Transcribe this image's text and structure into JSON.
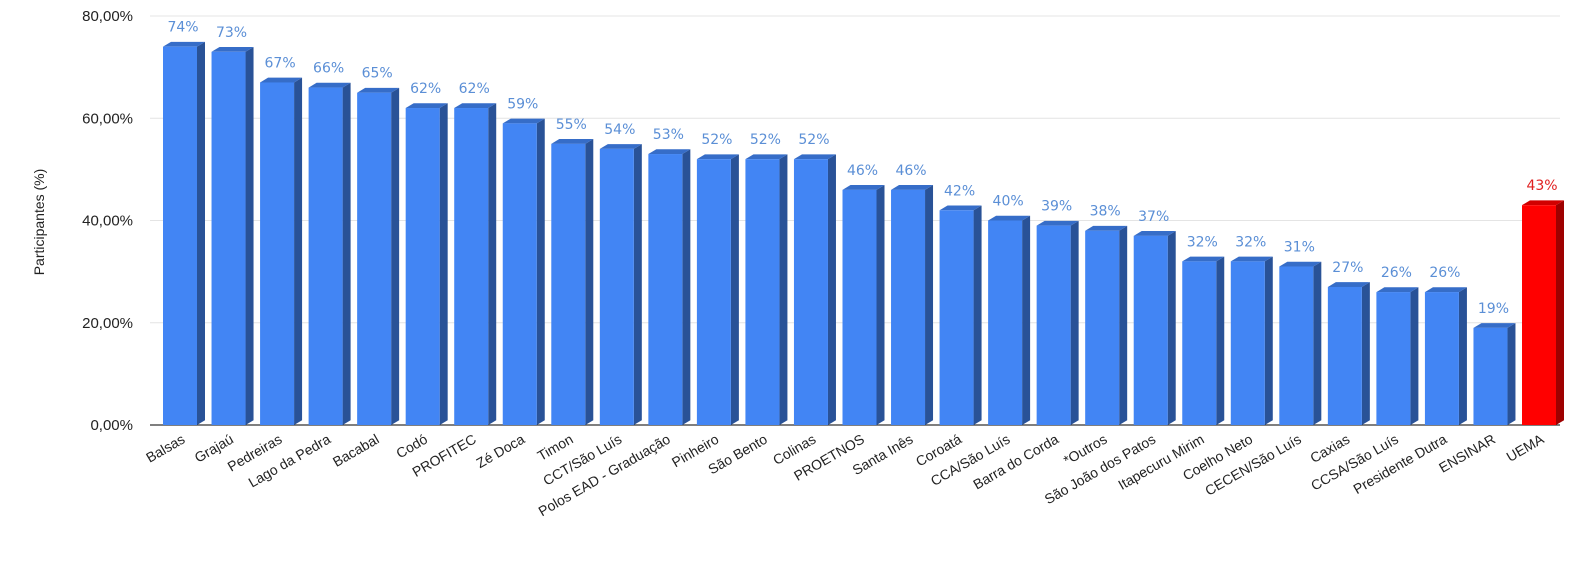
{
  "chart_data": {
    "type": "bar",
    "title": "",
    "xlabel": "",
    "ylabel": "Participantes (%)",
    "ylim": [
      0,
      80
    ],
    "yticks": [
      "0,00%",
      "20,00%",
      "40,00%",
      "60,00%",
      "80,00%"
    ],
    "grid": true,
    "categories": [
      "Balsas",
      "Grajaú",
      "Pedreiras",
      "Lago da Pedra",
      "Bacabal",
      "Codó",
      "PROFITEC",
      "Zé Doca",
      "Timon",
      "CCT/São Luís",
      "Polos EAD - Graduação",
      "Pinheiro",
      "São Bento",
      "Colinas",
      "PROETNOS",
      "Santa Inês",
      "Coroatá",
      "CCA/São Luís",
      "Barra do Corda",
      "*Outros",
      "São João dos Patos",
      "Itapecuru Mirim",
      "Coelho Neto",
      "CECEN/São Luís",
      "Caxias",
      "CCSA/São Luís",
      "Presidente Dutra",
      "ENSINAR",
      "UEMA"
    ],
    "values": [
      74,
      73,
      67,
      66,
      65,
      62,
      62,
      59,
      55,
      54,
      53,
      52,
      52,
      52,
      46,
      46,
      42,
      40,
      39,
      38,
      37,
      32,
      32,
      31,
      27,
      26,
      26,
      19,
      43
    ],
    "labels": [
      "74%",
      "73%",
      "67%",
      "66%",
      "65%",
      "62%",
      "62%",
      "59%",
      "55%",
      "54%",
      "53%",
      "52%",
      "52%",
      "52%",
      "46%",
      "46%",
      "42%",
      "40%",
      "39%",
      "38%",
      "37%",
      "32%",
      "32%",
      "31%",
      "27%",
      "26%",
      "26%",
      "19%",
      "43%"
    ],
    "colors": {
      "bar": "#4285f4",
      "bar_highlight": "#ff0000",
      "label": "#5b8fd6",
      "label_highlight": "#e02020"
    },
    "highlight_index": 28
  }
}
